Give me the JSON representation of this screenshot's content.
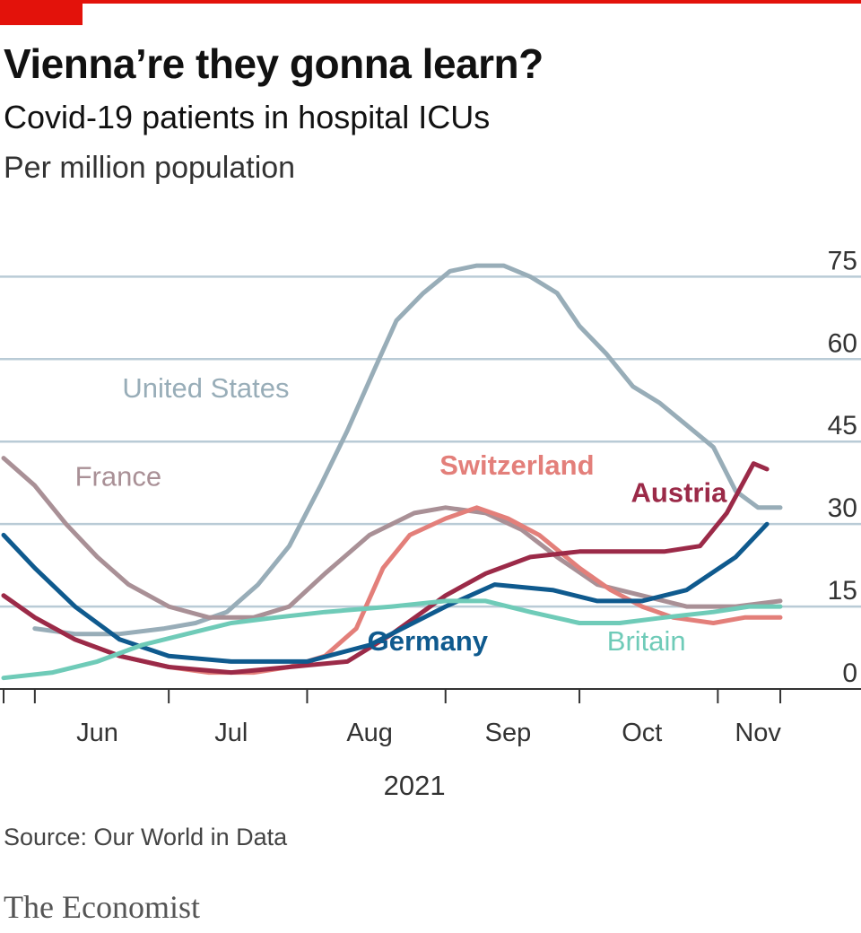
{
  "header": {
    "title": "Vienna’re they gonna learn?",
    "subtitle": "Covid-19 patients in hospital ICUs",
    "units": "Per million population"
  },
  "footer": {
    "source": "Source: Our World in Data",
    "brand": "The Economist"
  },
  "colors": {
    "accent_red": "#e3120b",
    "grid": "#b9cbd6",
    "axis": "#333333"
  },
  "chart_data": {
    "type": "line",
    "xlabel": "2021",
    "ylabel": "",
    "ylim": [
      0,
      78
    ],
    "xlim": [
      "2021-05-25",
      "2021-11-17"
    ],
    "yticks": [
      0,
      15,
      30,
      45,
      60,
      75
    ],
    "month_labels": [
      {
        "label": "Jun",
        "date": "2021-06-15"
      },
      {
        "label": "Jul",
        "date": "2021-07-15"
      },
      {
        "label": "Aug",
        "date": "2021-08-15"
      },
      {
        "label": "Sep",
        "date": "2021-09-15"
      },
      {
        "label": "Oct",
        "date": "2021-10-15"
      },
      {
        "label": "Nov",
        "date": "2021-11-10"
      }
    ],
    "month_boundaries": [
      "2021-05-25",
      "2021-06-01",
      "2021-07-01",
      "2021-08-01",
      "2021-09-01",
      "2021-10-01",
      "2021-11-01",
      "2021-11-15"
    ],
    "grid": true,
    "series": [
      {
        "name": "United States",
        "color": "#98adb8",
        "label_at": {
          "date": "2021-07-28",
          "value": 53,
          "anchor": "end"
        },
        "points": [
          [
            "2021-06-01",
            11
          ],
          [
            "2021-06-10",
            10
          ],
          [
            "2021-06-20",
            10
          ],
          [
            "2021-06-30",
            11
          ],
          [
            "2021-07-07",
            12
          ],
          [
            "2021-07-14",
            14
          ],
          [
            "2021-07-21",
            19
          ],
          [
            "2021-07-28",
            26
          ],
          [
            "2021-08-04",
            37
          ],
          [
            "2021-08-10",
            47
          ],
          [
            "2021-08-16",
            58
          ],
          [
            "2021-08-21",
            67
          ],
          [
            "2021-08-27",
            72
          ],
          [
            "2021-09-02",
            76
          ],
          [
            "2021-09-08",
            77
          ],
          [
            "2021-09-14",
            77
          ],
          [
            "2021-09-20",
            75
          ],
          [
            "2021-09-26",
            72
          ],
          [
            "2021-10-01",
            66
          ],
          [
            "2021-10-07",
            61
          ],
          [
            "2021-10-13",
            55
          ],
          [
            "2021-10-19",
            52
          ],
          [
            "2021-10-25",
            48
          ],
          [
            "2021-10-31",
            44
          ],
          [
            "2021-11-05",
            36
          ],
          [
            "2021-11-10",
            33
          ],
          [
            "2021-11-15",
            33
          ]
        ]
      },
      {
        "name": "France",
        "color": "#a99096",
        "label_at": {
          "date": "2021-06-10",
          "value": 37,
          "anchor": "start"
        },
        "points": [
          [
            "2021-05-25",
            42
          ],
          [
            "2021-06-01",
            37
          ],
          [
            "2021-06-08",
            30
          ],
          [
            "2021-06-15",
            24
          ],
          [
            "2021-06-22",
            19
          ],
          [
            "2021-07-01",
            15
          ],
          [
            "2021-07-10",
            13
          ],
          [
            "2021-07-20",
            13
          ],
          [
            "2021-07-28",
            15
          ],
          [
            "2021-08-05",
            21
          ],
          [
            "2021-08-15",
            28
          ],
          [
            "2021-08-25",
            32
          ],
          [
            "2021-09-01",
            33
          ],
          [
            "2021-09-10",
            32
          ],
          [
            "2021-09-18",
            29
          ],
          [
            "2021-09-26",
            24
          ],
          [
            "2021-10-05",
            19
          ],
          [
            "2021-10-15",
            17
          ],
          [
            "2021-10-25",
            15
          ],
          [
            "2021-11-05",
            15
          ],
          [
            "2021-11-15",
            16
          ]
        ]
      },
      {
        "name": "Switzerland",
        "color": "#e37f7a",
        "label_at": {
          "date": "2021-09-17",
          "value": 39,
          "anchor": "middle"
        },
        "points": [
          [
            "2021-05-25",
            17
          ],
          [
            "2021-06-01",
            13
          ],
          [
            "2021-06-10",
            9
          ],
          [
            "2021-06-20",
            6
          ],
          [
            "2021-07-01",
            4
          ],
          [
            "2021-07-10",
            3
          ],
          [
            "2021-07-20",
            3
          ],
          [
            "2021-07-28",
            4
          ],
          [
            "2021-08-05",
            6
          ],
          [
            "2021-08-12",
            11
          ],
          [
            "2021-08-18",
            22
          ],
          [
            "2021-08-24",
            28
          ],
          [
            "2021-09-01",
            31
          ],
          [
            "2021-09-08",
            33
          ],
          [
            "2021-09-15",
            31
          ],
          [
            "2021-09-22",
            28
          ],
          [
            "2021-10-01",
            22
          ],
          [
            "2021-10-08",
            18
          ],
          [
            "2021-10-15",
            15
          ],
          [
            "2021-10-22",
            13
          ],
          [
            "2021-10-31",
            12
          ],
          [
            "2021-11-07",
            13
          ],
          [
            "2021-11-15",
            13
          ]
        ]
      },
      {
        "name": "Austria",
        "color": "#9b2a48",
        "label_at": {
          "date": "2021-11-03",
          "value": 34,
          "anchor": "end"
        },
        "points": [
          [
            "2021-05-25",
            17
          ],
          [
            "2021-06-01",
            13
          ],
          [
            "2021-06-10",
            9
          ],
          [
            "2021-06-20",
            6
          ],
          [
            "2021-07-01",
            4
          ],
          [
            "2021-07-15",
            3
          ],
          [
            "2021-07-28",
            4
          ],
          [
            "2021-08-10",
            5
          ],
          [
            "2021-08-20",
            10
          ],
          [
            "2021-09-01",
            17
          ],
          [
            "2021-09-10",
            21
          ],
          [
            "2021-09-20",
            24
          ],
          [
            "2021-10-01",
            25
          ],
          [
            "2021-10-10",
            25
          ],
          [
            "2021-10-20",
            25
          ],
          [
            "2021-10-28",
            26
          ],
          [
            "2021-11-03",
            32
          ],
          [
            "2021-11-09",
            41
          ],
          [
            "2021-11-12",
            40
          ]
        ]
      },
      {
        "name": "Germany",
        "color": "#0f5a8e",
        "label_at": {
          "date": "2021-08-28",
          "value": 7,
          "anchor": "middle"
        },
        "points": [
          [
            "2021-05-25",
            28
          ],
          [
            "2021-06-01",
            22
          ],
          [
            "2021-06-10",
            15
          ],
          [
            "2021-06-20",
            9
          ],
          [
            "2021-07-01",
            6
          ],
          [
            "2021-07-15",
            5
          ],
          [
            "2021-08-01",
            5
          ],
          [
            "2021-08-15",
            8
          ],
          [
            "2021-09-01",
            15
          ],
          [
            "2021-09-12",
            19
          ],
          [
            "2021-09-25",
            18
          ],
          [
            "2021-10-05",
            16
          ],
          [
            "2021-10-15",
            16
          ],
          [
            "2021-10-25",
            18
          ],
          [
            "2021-11-05",
            24
          ],
          [
            "2021-11-12",
            30
          ]
        ]
      },
      {
        "name": "Britain",
        "color": "#6fcbb8",
        "label_at": {
          "date": "2021-10-16",
          "value": 7,
          "anchor": "middle"
        },
        "points": [
          [
            "2021-05-25",
            2
          ],
          [
            "2021-06-05",
            3
          ],
          [
            "2021-06-15",
            5
          ],
          [
            "2021-06-25",
            8
          ],
          [
            "2021-07-05",
            10
          ],
          [
            "2021-07-15",
            12
          ],
          [
            "2021-07-25",
            13
          ],
          [
            "2021-08-05",
            14
          ],
          [
            "2021-08-20",
            15
          ],
          [
            "2021-09-01",
            16
          ],
          [
            "2021-09-10",
            16
          ],
          [
            "2021-09-20",
            14
          ],
          [
            "2021-10-01",
            12
          ],
          [
            "2021-10-10",
            12
          ],
          [
            "2021-10-20",
            13
          ],
          [
            "2021-10-31",
            14
          ],
          [
            "2021-11-08",
            15
          ],
          [
            "2021-11-15",
            15
          ]
        ]
      }
    ]
  }
}
